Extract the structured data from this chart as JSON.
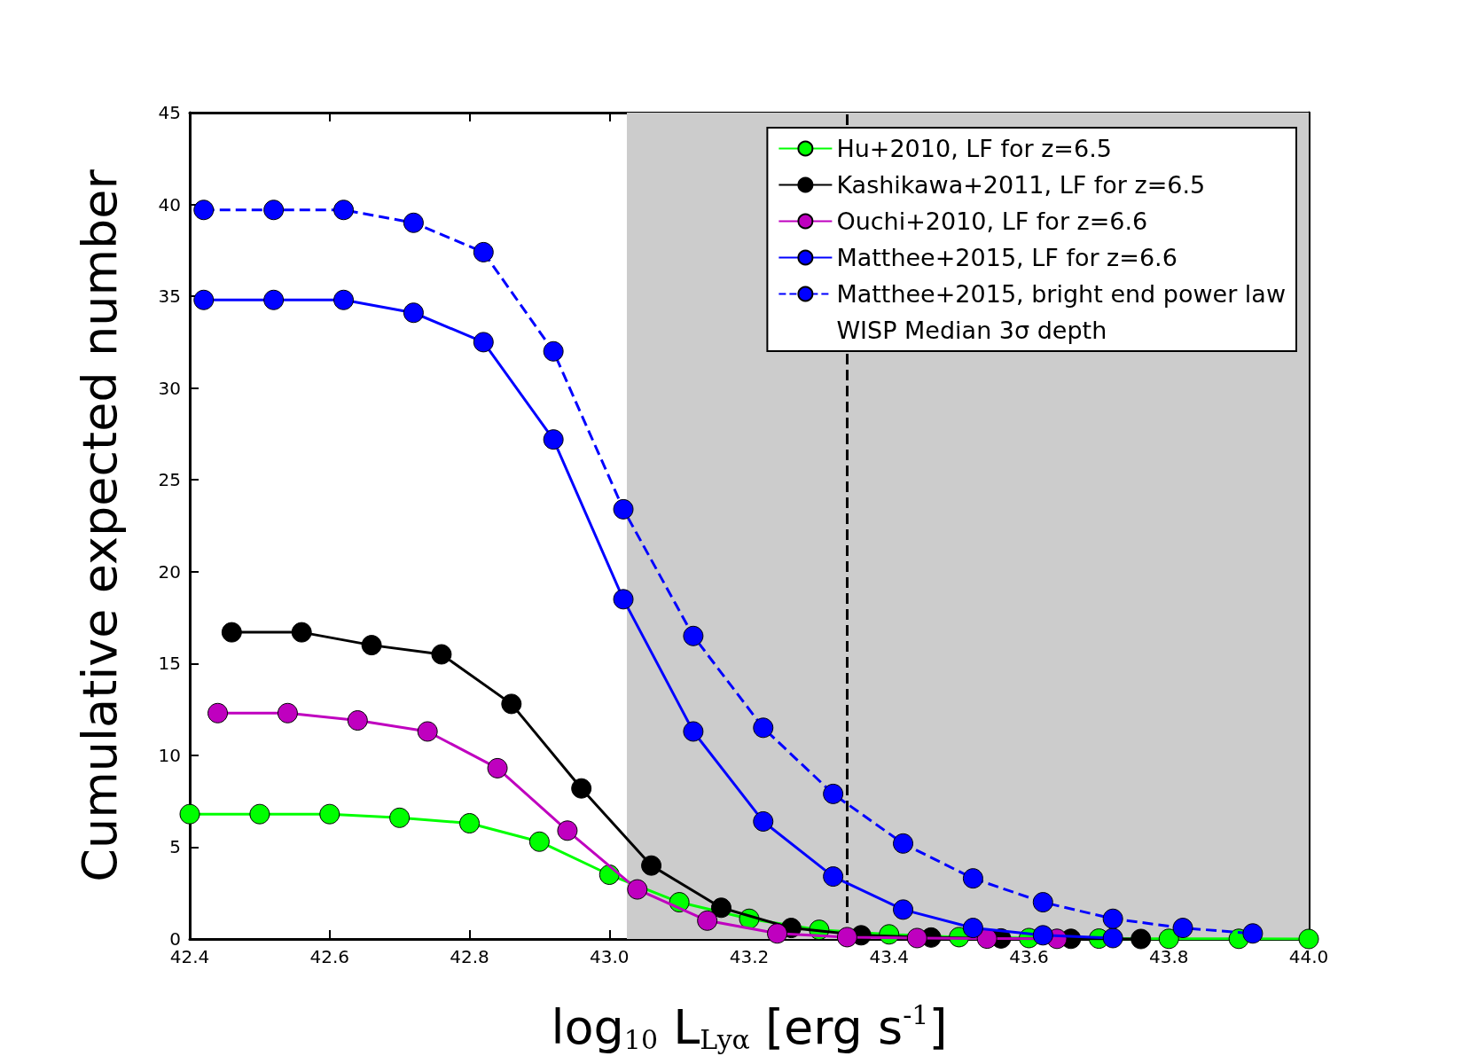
{
  "chart_data": {
    "type": "line",
    "xlabel": "log$_{10}$ L$_{Lyα}$ [erg s$^{-1}$]",
    "ylabel": "Cumulative expected number",
    "xlim": [
      42.4,
      44.0
    ],
    "xticks": [
      42.4,
      42.6,
      42.8,
      {
        "value": 43,
        "label": "43.0"
      },
      43.2,
      43.4,
      43.6,
      43.8,
      {
        "value": 44,
        "label": "44.0"
      }
    ],
    "ylim": [
      0,
      45
    ],
    "yticks": [
      0,
      5,
      10,
      15,
      20,
      25,
      30,
      35,
      40,
      45
    ],
    "grid": false,
    "legend": "top right",
    "marker": "circle",
    "series": [
      {
        "name": "Hu+2010, LF for z=6.5",
        "color": "#00ff00",
        "line_style": "solid",
        "x": [
          42.4,
          42.5,
          42.6,
          42.7,
          42.8,
          42.9,
          43.0,
          43.1,
          43.2,
          43.3,
          43.4,
          43.5,
          43.6,
          43.7,
          43.8,
          43.9,
          44.0
        ],
        "values": [
          6.8,
          6.8,
          6.8,
          6.6,
          6.3,
          5.3,
          3.5,
          2.0,
          1.1,
          0.5,
          0.25,
          0.1,
          0.05,
          0.02,
          0.01,
          0.01,
          0
        ]
      },
      {
        "name": "Kashikawa+2011, LF for z=6.5",
        "color": "#000000",
        "line_style": "solid",
        "x": [
          42.46,
          42.56,
          42.66,
          42.76,
          42.86,
          42.96,
          43.06,
          43.16,
          43.26,
          43.36,
          43.46,
          43.56,
          43.66,
          43.76
        ],
        "values": [
          16.7,
          16.7,
          16.0,
          15.5,
          12.8,
          8.2,
          4.0,
          1.7,
          0.6,
          0.2,
          0.08,
          0.03,
          0.01,
          0
        ]
      },
      {
        "name": "Ouchi+2010, LF for z=6.6",
        "color": "#bf00bf",
        "line_style": "solid",
        "x": [
          42.44,
          42.54,
          42.64,
          42.74,
          42.84,
          42.94,
          43.04,
          43.14,
          43.24,
          43.34,
          43.44,
          43.54,
          43.64
        ],
        "values": [
          12.3,
          12.3,
          11.9,
          11.3,
          9.3,
          5.9,
          2.7,
          1.0,
          0.3,
          0.1,
          0.05,
          0.02,
          0.01
        ]
      },
      {
        "name": "Matthee+2015, LF for z=6.6",
        "color": "#0000ff",
        "line_style": "solid",
        "x": [
          42.42,
          42.52,
          42.62,
          42.72,
          42.82,
          42.92,
          43.02,
          43.12,
          43.22,
          43.32,
          43.42,
          43.52,
          43.62,
          43.72
        ],
        "values": [
          34.8,
          34.8,
          34.8,
          34.1,
          32.5,
          27.2,
          18.5,
          11.3,
          6.4,
          3.4,
          1.6,
          0.6,
          0.2,
          0.05
        ]
      },
      {
        "name": "Matthee+2015, bright end power law",
        "color": "#0000ff",
        "line_style": "dashed",
        "x": [
          42.42,
          42.52,
          42.62,
          42.72,
          42.82,
          42.92,
          43.02,
          43.12,
          43.22,
          43.32,
          43.42,
          43.52,
          43.62,
          43.72,
          43.82,
          43.92
        ],
        "values": [
          39.7,
          39.7,
          39.7,
          39.0,
          37.4,
          32.0,
          23.4,
          16.5,
          11.5,
          7.9,
          5.2,
          3.3,
          2.0,
          1.1,
          0.6,
          0.3
        ]
      }
    ],
    "ref_lines": [
      {
        "axis": "x",
        "value": 43.34,
        "label": "WISP Median 3σ depth",
        "color": "#000000",
        "line_style": "dashed"
      }
    ],
    "bands": [
      {
        "axis": "x",
        "from": 43.025,
        "to": 44.0,
        "color": "#cccccc"
      }
    ]
  }
}
